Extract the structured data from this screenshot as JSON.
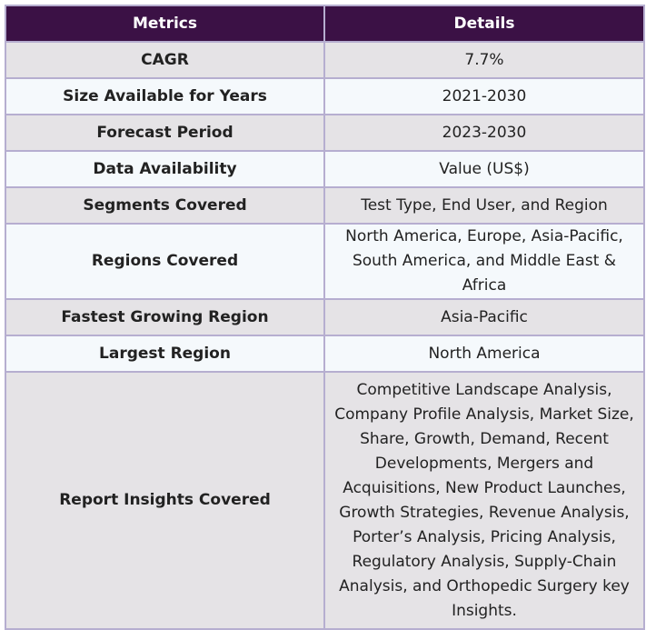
{
  "table": {
    "headers": [
      "Metrics",
      "Details"
    ],
    "rows": [
      {
        "metric": "CAGR",
        "detail": "7.7%"
      },
      {
        "metric": "Size Available for Years",
        "detail": "2021-2030"
      },
      {
        "metric": "Forecast Period",
        "detail": "2023-2030"
      },
      {
        "metric": "Data Availability",
        "detail": "Value (US$)"
      },
      {
        "metric": "Segments Covered",
        "detail": "Test Type, End User, and Region"
      },
      {
        "metric": "Regions Covered",
        "detail": "North America, Europe, Asia-Pacific, South America, and Middle East & Africa"
      },
      {
        "metric": "Fastest Growing Region",
        "detail": "Asia-Pacific"
      },
      {
        "metric": "Largest Region",
        "detail": "North America"
      },
      {
        "metric": "Report Insights Covered",
        "detail": "Competitive Landscape Analysis, Company Profile Analysis, Market Size, Share, Growth, Demand, Recent Developments, Mergers and Acquisitions, New Product Launches, Growth Strategies, Revenue Analysis, Porter’s Analysis, Pricing Analysis, Regulatory Analysis, Supply-Chain Analysis, and Orthopedic Surgery key Insights."
      }
    ]
  },
  "colors": {
    "header_bg": "#3b1145",
    "header_text": "#ffffff",
    "row_odd_bg": "#e5e3e6",
    "row_even_bg": "#f5f9fc",
    "border": "#b6aed0"
  }
}
